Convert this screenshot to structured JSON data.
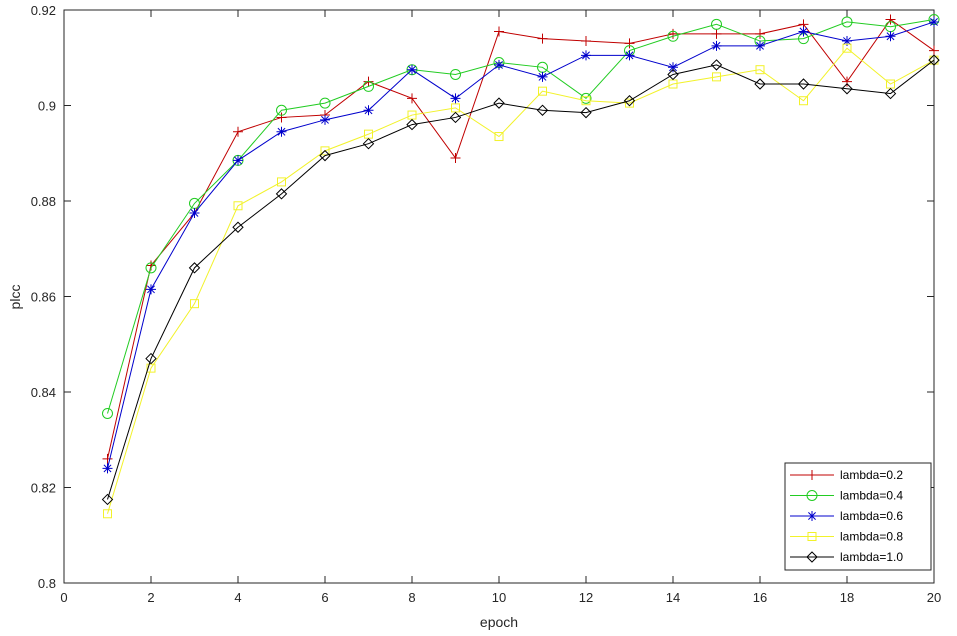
{
  "chart_data": {
    "type": "line",
    "title": "",
    "xlabel": "epoch",
    "ylabel": "plcc",
    "xlim": [
      0,
      20
    ],
    "ylim": [
      0.8,
      0.92
    ],
    "xticks": [
      0,
      2,
      4,
      6,
      8,
      10,
      12,
      14,
      16,
      18,
      20
    ],
    "yticks": [
      0.8,
      0.82,
      0.84,
      0.86,
      0.88,
      0.9,
      0.92
    ],
    "x": [
      1,
      2,
      3,
      4,
      5,
      6,
      7,
      8,
      9,
      10,
      11,
      12,
      13,
      14,
      15,
      16,
      17,
      18,
      19,
      20
    ],
    "grid": false,
    "legend_position": "bottom-right",
    "series": [
      {
        "name": "lambda=0.2",
        "color": "#c00000",
        "marker": "plus",
        "values": [
          0.826,
          0.8665,
          0.8775,
          0.8945,
          0.8975,
          0.898,
          0.905,
          0.9015,
          0.889,
          0.9155,
          0.914,
          0.9135,
          0.913,
          0.915,
          0.915,
          0.915,
          0.917,
          0.905,
          0.918,
          0.9115
        ]
      },
      {
        "name": "lambda=0.4",
        "color": "#22cc22",
        "marker": "circle",
        "values": [
          0.8355,
          0.866,
          0.8795,
          0.8885,
          0.899,
          0.9005,
          0.904,
          0.9075,
          0.9065,
          0.909,
          0.908,
          0.9015,
          0.9115,
          0.9145,
          0.917,
          0.9135,
          0.914,
          0.9175,
          0.9165,
          0.918
        ]
      },
      {
        "name": "lambda=0.6",
        "color": "#0000cc",
        "marker": "asterisk",
        "values": [
          0.824,
          0.8615,
          0.8775,
          0.8885,
          0.8945,
          0.897,
          0.899,
          0.9075,
          0.9015,
          0.9085,
          0.906,
          0.9105,
          0.9105,
          0.908,
          0.9125,
          0.9125,
          0.9155,
          0.9135,
          0.9145,
          0.9175
        ]
      },
      {
        "name": "lambda=0.8",
        "color": "#f2f22a",
        "marker": "square",
        "values": [
          0.8145,
          0.845,
          0.8585,
          0.879,
          0.884,
          0.8905,
          0.894,
          0.898,
          0.8995,
          0.8935,
          0.903,
          0.901,
          0.9005,
          0.9045,
          0.906,
          0.9075,
          0.901,
          0.912,
          0.9045,
          0.9095
        ]
      },
      {
        "name": "lambda=1.0",
        "color": "#000000",
        "marker": "diamond",
        "values": [
          0.8175,
          0.847,
          0.866,
          0.8745,
          0.8815,
          0.8895,
          0.892,
          0.896,
          0.8975,
          0.9005,
          0.899,
          0.8985,
          0.901,
          0.9065,
          0.9085,
          0.9045,
          0.9045,
          0.9035,
          0.9025,
          0.9095
        ]
      }
    ]
  }
}
